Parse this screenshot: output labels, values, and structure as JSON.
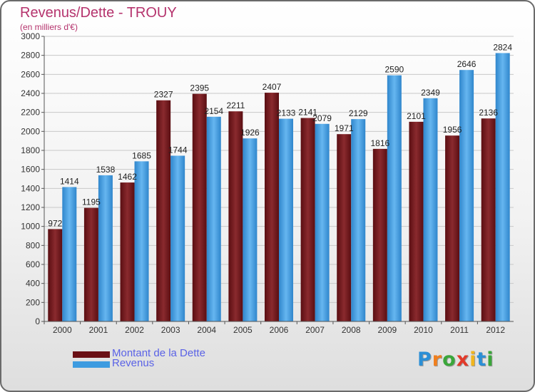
{
  "chart_data": {
    "type": "bar",
    "title": "Revenus/Dette - TROUY",
    "subtitle": "(en milliers d'€)",
    "categories": [
      "2000",
      "2001",
      "2002",
      "2003",
      "2004",
      "2005",
      "2006",
      "2007",
      "2008",
      "2009",
      "2010",
      "2011",
      "2012"
    ],
    "ylim": [
      0,
      3000
    ],
    "yticks": [
      0,
      200,
      400,
      600,
      800,
      1000,
      1200,
      1400,
      1600,
      1800,
      2000,
      2200,
      2400,
      2600,
      2800,
      3000
    ],
    "grid": true,
    "legend_position": "bottom-left",
    "series": [
      {
        "name": "Montant de la Dette",
        "color": "#7b1c20",
        "values": [
          972,
          1195,
          1462,
          2327,
          2395,
          2211,
          2407,
          2141,
          1971,
          1816,
          2101,
          1956,
          2136
        ],
        "labels": [
          "972",
          "1195",
          "1462",
          "2327",
          "2395",
          "2211",
          "2407",
          "2141",
          "1971",
          "1816",
          "2101",
          "1956",
          "2136"
        ]
      },
      {
        "name": "Revenus",
        "color": "#3d9be0",
        "values": [
          1414,
          1538,
          1685,
          1744,
          2154,
          1926,
          2133,
          2079,
          2129,
          2590,
          2349,
          2646,
          2824
        ],
        "labels": [
          "1414",
          "1538",
          "1685",
          "1744",
          "2154",
          "1926",
          "2133",
          "2079",
          "2129",
          "2590",
          "2349",
          "2646",
          "2824"
        ]
      }
    ]
  },
  "brand": {
    "text": "Proxiti",
    "letters": [
      "P",
      "r",
      "o",
      "x",
      "i",
      "t",
      "i"
    ],
    "letter_colors": [
      "#2b8fd6",
      "#f07f1e",
      "#3aa63a",
      "#e23a2a",
      "#f0b51e",
      "#2b8fd6",
      "#3aa63a"
    ]
  }
}
